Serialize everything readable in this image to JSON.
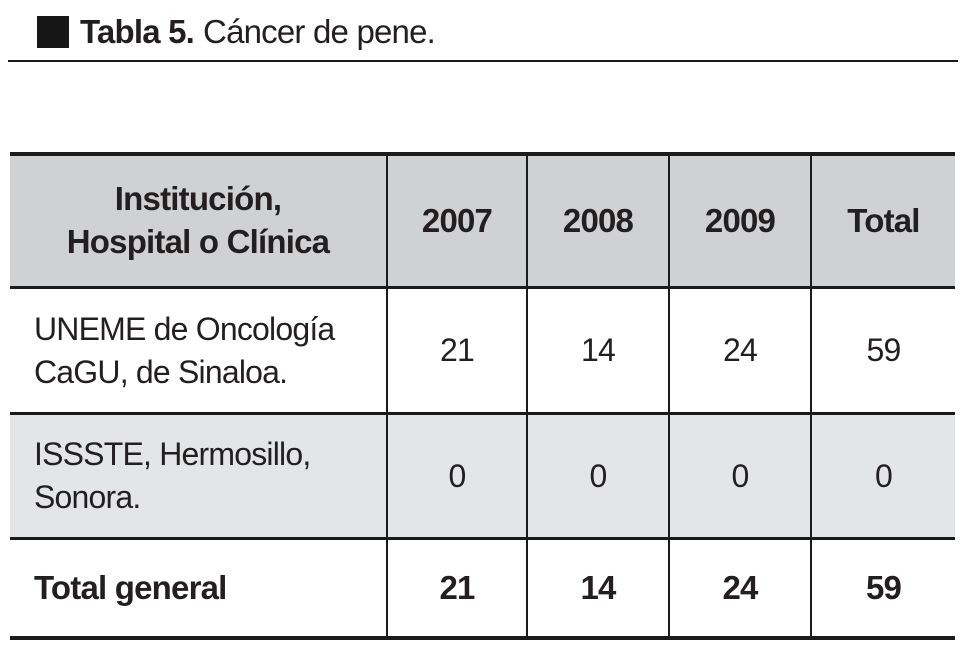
{
  "title": {
    "marker": "black-square",
    "label_bold": "Tabla 5.",
    "label_regular": "Cáncer de pene."
  },
  "colors": {
    "header_bg": "#d0d1d2",
    "stripe_bg": "#e4e5e6",
    "border": "#1b1b1b",
    "text": "#231f20"
  },
  "table": {
    "columns": [
      {
        "label": "Institución,\nHospital o Clínica"
      },
      {
        "label": "2007"
      },
      {
        "label": "2008"
      },
      {
        "label": "2009"
      },
      {
        "label": "Total"
      }
    ],
    "rows": [
      {
        "label": "UNEME de Oncología\nCaGU, de Sinaloa.",
        "values": [
          "21",
          "14",
          "24",
          "59"
        ]
      },
      {
        "label": "ISSSTE, Hermosillo,\nSonora.",
        "values": [
          "0",
          "0",
          "0",
          "0"
        ]
      }
    ],
    "total_row": {
      "label": "Total general",
      "values": [
        "21",
        "14",
        "24",
        "59"
      ]
    }
  }
}
